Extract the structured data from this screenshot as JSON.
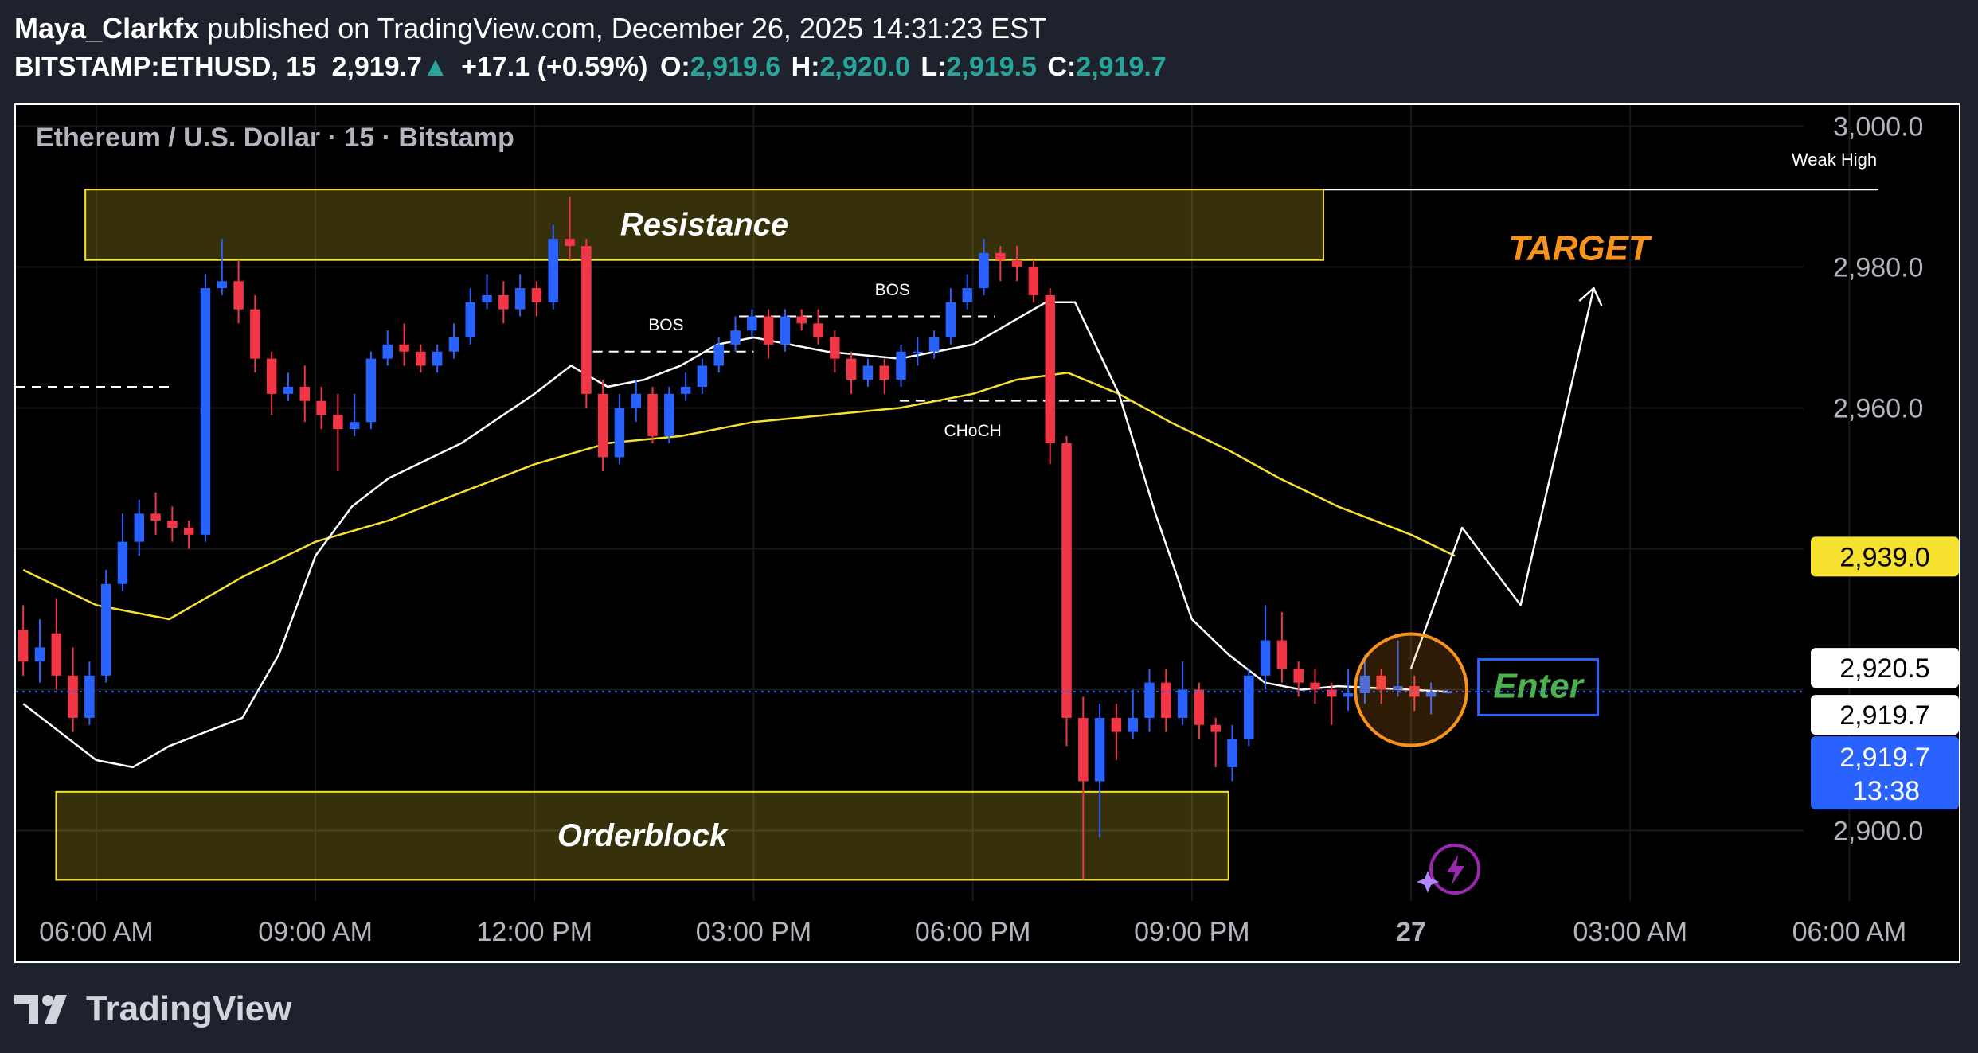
{
  "header": {
    "author": "Maya_Clarkfx",
    "published_text": " published on TradingView.com, December 26, 2025 14:31:23 EST",
    "symbol": "BITSTAMP:ETHUSD, 15",
    "last_price": "2,919.7",
    "change": "+17.1 (+0.59%)",
    "ohlc": {
      "o_label": "O:",
      "o": "2,919.6",
      "h_label": "H:",
      "h": "2,920.0",
      "l_label": "L:",
      "l": "2,919.5",
      "c_label": "C:",
      "c": "2,919.7"
    }
  },
  "footer": {
    "brand": "TradingView"
  },
  "chart_data": {
    "type": "candlestick",
    "title": "Ethereum / U.S. Dollar · 15 · Bitstamp",
    "x_ticks": [
      {
        "label": "06:00 AM",
        "hour": 0
      },
      {
        "label": "09:00 AM",
        "hour": 3
      },
      {
        "label": "12:00 PM",
        "hour": 6
      },
      {
        "label": "03:00 PM",
        "hour": 9
      },
      {
        "label": "06:00 PM",
        "hour": 12
      },
      {
        "label": "09:00 PM",
        "hour": 15
      },
      {
        "label": "27",
        "hour": 18
      },
      {
        "label": "03:00 AM",
        "hour": 21
      },
      {
        "label": "06:00 AM",
        "hour": 24
      }
    ],
    "y_ticks": [
      "3,000.0",
      "2,980.0",
      "2,960.0",
      "2,900.0"
    ],
    "y_tick_values": [
      3000,
      2980,
      2960,
      2900
    ],
    "x_range": [
      -1.1,
      25.5
    ],
    "y_range": [
      2890,
      3003
    ],
    "price_tags": [
      {
        "label": "2,939.0",
        "value": 2939.0,
        "bg": "#f7e12f",
        "fg": "#000000"
      },
      {
        "label": "2,920.5",
        "value": 2920.5,
        "bg": "#ffffff",
        "fg": "#000000"
      },
      {
        "label": "2,919.7",
        "value": 2919.7,
        "bg": "#ffffff",
        "fg": "#000000"
      }
    ],
    "current_price": {
      "label": "2,919.7",
      "countdown": "13:38",
      "value": 2919.7,
      "bg": "#2962ff"
    },
    "candles": [
      [
        2928.5,
        2924.0,
        2932.0,
        2922.0
      ],
      [
        2924.0,
        2926.0,
        2930.0,
        2921.0
      ],
      [
        2928.0,
        2922.0,
        2933.0,
        2920.0
      ],
      [
        2922.0,
        2916.0,
        2926.0,
        2914.0
      ],
      [
        2916.0,
        2922.0,
        2924.0,
        2915.0
      ],
      [
        2922.0,
        2935.0,
        2937.0,
        2921.0
      ],
      [
        2935.0,
        2941.0,
        2945.0,
        2934.0
      ],
      [
        2941.0,
        2945.0,
        2947.0,
        2939.0
      ],
      [
        2945.0,
        2944.0,
        2948.0,
        2942.0
      ],
      [
        2944.0,
        2943.0,
        2946.0,
        2941.0
      ],
      [
        2943.0,
        2942.0,
        2944.0,
        2940.0
      ],
      [
        2942.0,
        2977.0,
        2979.0,
        2941.0
      ],
      [
        2977.0,
        2978.0,
        2984.0,
        2976.0
      ],
      [
        2978.0,
        2974.0,
        2981.0,
        2972.0
      ],
      [
        2974.0,
        2967.0,
        2976.0,
        2965.0
      ],
      [
        2967.0,
        2962.0,
        2968.0,
        2959.0
      ],
      [
        2962.0,
        2963.0,
        2965.0,
        2961.0
      ],
      [
        2963.0,
        2961.0,
        2966.0,
        2958.0
      ],
      [
        2961.0,
        2959.0,
        2963.0,
        2957.0
      ],
      [
        2959.0,
        2957.0,
        2962.0,
        2951.0
      ],
      [
        2957.0,
        2958.0,
        2962.0,
        2956.0
      ],
      [
        2958.0,
        2967.0,
        2968.0,
        2957.0
      ],
      [
        2967.0,
        2969.0,
        2971.0,
        2966.0
      ],
      [
        2969.0,
        2968.0,
        2972.0,
        2966.0
      ],
      [
        2968.0,
        2966.0,
        2969.0,
        2965.0
      ],
      [
        2966.0,
        2968.0,
        2969.0,
        2965.0
      ],
      [
        2968.0,
        2970.0,
        2972.0,
        2967.0
      ],
      [
        2970.0,
        2975.0,
        2977.0,
        2969.0
      ],
      [
        2975.0,
        2976.0,
        2979.0,
        2974.0
      ],
      [
        2976.0,
        2974.0,
        2978.0,
        2972.0
      ],
      [
        2974.0,
        2977.0,
        2979.0,
        2973.0
      ],
      [
        2977.0,
        2975.0,
        2978.0,
        2973.0
      ],
      [
        2975.0,
        2984.0,
        2986.0,
        2974.0
      ],
      [
        2984.0,
        2983.0,
        2990.0,
        2981.0
      ],
      [
        2983.0,
        2962.0,
        2984.0,
        2960.0
      ],
      [
        2962.0,
        2953.0,
        2964.0,
        2951.0
      ],
      [
        2953.0,
        2960.0,
        2962.0,
        2952.0
      ],
      [
        2960.0,
        2962.0,
        2964.0,
        2958.0
      ],
      [
        2962.0,
        2956.0,
        2963.0,
        2955.0
      ],
      [
        2956.0,
        2962.0,
        2963.0,
        2955.0
      ],
      [
        2962.0,
        2963.0,
        2965.0,
        2961.0
      ],
      [
        2963.0,
        2966.0,
        2967.0,
        2962.0
      ],
      [
        2966.0,
        2969.0,
        2970.0,
        2965.0
      ],
      [
        2969.0,
        2971.0,
        2973.0,
        2968.0
      ],
      [
        2971.0,
        2973.0,
        2974.0,
        2970.0
      ],
      [
        2973.0,
        2969.0,
        2974.0,
        2967.0
      ],
      [
        2969.0,
        2973.0,
        2974.0,
        2968.0
      ],
      [
        2973.0,
        2972.0,
        2974.0,
        2971.0
      ],
      [
        2972.0,
        2970.0,
        2974.0,
        2969.0
      ],
      [
        2970.0,
        2967.0,
        2971.0,
        2965.0
      ],
      [
        2967.0,
        2964.0,
        2968.0,
        2962.0
      ],
      [
        2964.0,
        2966.0,
        2967.0,
        2963.0
      ],
      [
        2966.0,
        2964.0,
        2967.0,
        2962.0
      ],
      [
        2964.0,
        2968.0,
        2969.0,
        2963.0
      ],
      [
        2968.0,
        2968.0,
        2970.0,
        2966.0
      ],
      [
        2968.0,
        2970.0,
        2971.0,
        2967.0
      ],
      [
        2970.0,
        2975.0,
        2977.0,
        2969.0
      ],
      [
        2975.0,
        2977.0,
        2979.0,
        2974.0
      ],
      [
        2977.0,
        2982.0,
        2984.0,
        2976.0
      ],
      [
        2982.0,
        2981.0,
        2983.0,
        2978.0
      ],
      [
        2981.0,
        2980.0,
        2983.0,
        2978.0
      ],
      [
        2980.0,
        2976.0,
        2981.0,
        2975.0
      ],
      [
        2976.0,
        2955.0,
        2977.0,
        2952.0
      ],
      [
        2955.0,
        2916.0,
        2956.0,
        2912.0
      ],
      [
        2916.0,
        2907.0,
        2919.0,
        2893.0
      ],
      [
        2907.0,
        2916.0,
        2918.0,
        2899.0
      ],
      [
        2916.0,
        2914.0,
        2918.0,
        2910.0
      ],
      [
        2914.0,
        2916.0,
        2920.0,
        2913.0
      ],
      [
        2916.0,
        2921.0,
        2923.0,
        2914.0
      ],
      [
        2921.0,
        2916.0,
        2923.0,
        2914.0
      ],
      [
        2916.0,
        2920.0,
        2924.0,
        2915.0
      ],
      [
        2920.0,
        2915.0,
        2921.0,
        2913.0
      ],
      [
        2915.0,
        2914.0,
        2916.0,
        2909.0
      ],
      [
        2909.0,
        2913.0,
        2915.0,
        2907.0
      ],
      [
        2913.0,
        2922.0,
        2923.0,
        2912.0
      ],
      [
        2922.0,
        2927.0,
        2932.0,
        2920.0
      ],
      [
        2927.0,
        2923.0,
        2931.0,
        2921.0
      ],
      [
        2923.0,
        2921.0,
        2924.0,
        2919.0
      ],
      [
        2921.0,
        2920.0,
        2923.0,
        2918.0
      ],
      [
        2920.0,
        2919.0,
        2921.0,
        2915.0
      ],
      [
        2919.0,
        2919.5,
        2923.0,
        2917.0
      ],
      [
        2919.5,
        2922.0,
        2925.0,
        2918.0
      ],
      [
        2922.0,
        2920.0,
        2923.0,
        2918.0
      ],
      [
        2920.0,
        2920.5,
        2927.0,
        2919.0
      ],
      [
        2920.5,
        2919.0,
        2922.0,
        2917.0
      ],
      [
        2919.0,
        2919.7,
        2921.0,
        2916.5
      ],
      [
        2919.7,
        2919.7,
        2920.0,
        2919.5
      ]
    ],
    "ema_fast": [
      [
        -1.0,
        2918
      ],
      [
        -0.5,
        2914
      ],
      [
        0.0,
        2910
      ],
      [
        0.5,
        2909
      ],
      [
        1.0,
        2912
      ],
      [
        1.5,
        2914
      ],
      [
        2.0,
        2916
      ],
      [
        2.5,
        2925
      ],
      [
        3.0,
        2939
      ],
      [
        3.5,
        2946
      ],
      [
        4.0,
        2950
      ],
      [
        5.0,
        2955
      ],
      [
        6.0,
        2962
      ],
      [
        6.5,
        2966
      ],
      [
        7.0,
        2963
      ],
      [
        7.5,
        2964
      ],
      [
        8.0,
        2966
      ],
      [
        8.5,
        2969
      ],
      [
        9.0,
        2970
      ],
      [
        10.0,
        2968
      ],
      [
        11.0,
        2967
      ],
      [
        12.0,
        2969
      ],
      [
        12.5,
        2972
      ],
      [
        13.0,
        2975
      ],
      [
        13.4,
        2975
      ],
      [
        14.0,
        2962
      ],
      [
        14.5,
        2945
      ],
      [
        15.0,
        2930
      ],
      [
        15.5,
        2925
      ],
      [
        16.0,
        2921
      ],
      [
        16.5,
        2920
      ],
      [
        17.0,
        2920.5
      ],
      [
        18.0,
        2920
      ],
      [
        18.5,
        2919.7
      ]
    ],
    "ema_slow": [
      [
        -1.0,
        2937
      ],
      [
        0.0,
        2932
      ],
      [
        1.0,
        2930
      ],
      [
        2.0,
        2936
      ],
      [
        3.0,
        2941
      ],
      [
        4.0,
        2944
      ],
      [
        5.0,
        2948
      ],
      [
        6.0,
        2952
      ],
      [
        7.0,
        2955
      ],
      [
        8.0,
        2956
      ],
      [
        9.0,
        2958
      ],
      [
        10.0,
        2959
      ],
      [
        11.0,
        2960
      ],
      [
        12.0,
        2962
      ],
      [
        12.6,
        2964
      ],
      [
        13.3,
        2965
      ],
      [
        14.0,
        2962
      ],
      [
        14.7,
        2958
      ],
      [
        15.5,
        2954
      ],
      [
        16.2,
        2950
      ],
      [
        17.0,
        2946
      ],
      [
        17.5,
        2944
      ],
      [
        18.0,
        2942
      ],
      [
        18.6,
        2939
      ]
    ],
    "zones": [
      {
        "label": "Resistance",
        "x0": -0.15,
        "x1": 16.8,
        "y0": 2981,
        "y1": 2991
      },
      {
        "label": "Orderblock",
        "x0": -0.55,
        "x1": 15.5,
        "y0": 2893,
        "y1": 2905.5
      }
    ],
    "weak_high": {
      "label": "Weak High",
      "x0": 16.8,
      "x1": 24.4,
      "y": 2991
    },
    "dashed_lines": [
      {
        "x0": -1.1,
        "x1": 1.0,
        "y": 2963
      },
      {
        "x0": 6.8,
        "x1": 9.0,
        "y": 2968
      },
      {
        "x0": 8.8,
        "x1": 12.3,
        "y": 2973
      },
      {
        "x0": 11.0,
        "x1": 14.2,
        "y": 2961
      }
    ],
    "annotations": [
      {
        "text": "BOS",
        "x": 7.8,
        "y": 2971
      },
      {
        "text": "BOS",
        "x": 10.9,
        "y": 2976
      },
      {
        "text": "CHoCH",
        "x": 12.0,
        "y": 2956
      }
    ],
    "projection": [
      [
        18.0,
        2923
      ],
      [
        18.7,
        2943
      ],
      [
        19.5,
        2932
      ],
      [
        20.5,
        2977
      ]
    ],
    "target": {
      "label": "TARGET",
      "x": 20.3,
      "y": 2981
    },
    "enter_label": "Enter",
    "enter_circle": {
      "x": 18.0,
      "y": 2920
    }
  }
}
